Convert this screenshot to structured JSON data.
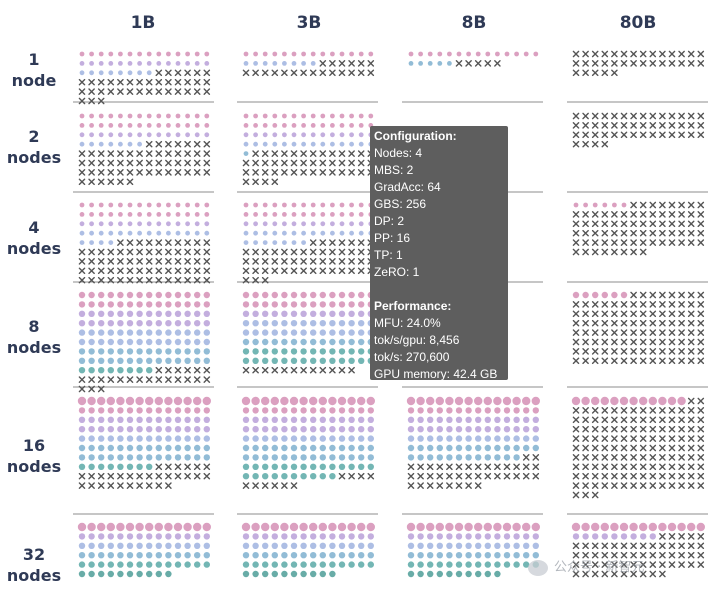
{
  "chart_data": {
    "type": "heatmap",
    "columns": [
      "1B",
      "3B",
      "8B",
      "80B"
    ],
    "rows": [
      [
        "1",
        "node"
      ],
      [
        "2",
        "nodes"
      ],
      [
        "4",
        "nodes"
      ],
      [
        "8",
        "nodes"
      ],
      [
        "16",
        "nodes"
      ],
      [
        "32",
        "nodes"
      ]
    ],
    "cells": [
      [
        {
          "dots": 36,
          "crosses": 37
        },
        {
          "dots": 22,
          "crosses": 20
        },
        {
          "dots": 19,
          "crosses": 5
        },
        {
          "dots": 0,
          "crosses": 33
        }
      ],
      [
        {
          "dots": 49,
          "crosses": 55
        },
        {
          "dots": 57,
          "crosses": 45
        },
        {
          "dots": 0,
          "crosses": 0
        },
        {
          "dots": 0,
          "crosses": 46
        }
      ],
      [
        {
          "dots": 60,
          "crosses": 66
        },
        {
          "dots": 63,
          "crosses": 52
        },
        {
          "dots": 0,
          "crosses": 0
        },
        {
          "dots": 6,
          "crosses": 72
        }
      ],
      [
        {
          "dots": 120,
          "crosses": 23
        },
        {
          "dots": 112,
          "crosses": 12
        },
        {
          "dots": 0,
          "crosses": 0
        },
        {
          "dots": 6,
          "crosses": 106
        }
      ],
      [
        {
          "dots": 106,
          "crosses": 30
        },
        {
          "dots": 122,
          "crosses": 10
        },
        {
          "dots": 96,
          "crosses": 38
        },
        {
          "dots": 12,
          "crosses": 131
        }
      ],
      [
        {
          "dots": 80,
          "crosses": 0
        },
        {
          "dots": 80,
          "crosses": 0
        },
        {
          "dots": 80,
          "crosses": 0
        },
        {
          "dots": 23,
          "crosses": 57
        }
      ]
    ],
    "dot_colors": [
      "#d58fb5",
      "#b9a0d8",
      "#9fb3df",
      "#7fb0cf",
      "#5ba9a7",
      "#4d9d98"
    ],
    "cross_color": "#555555",
    "grid": false,
    "legend": "none"
  },
  "tooltip": {
    "config_heading": "Configuration:",
    "config_lines": [
      "Nodes: 4",
      "MBS: 2",
      "GradAcc: 64",
      "GBS: 256",
      "DP: 2",
      "PP: 16",
      "TP: 1",
      "ZeRO: 1"
    ],
    "perf_heading": "Performance:",
    "perf_lines": [
      "MFU:  24.0%",
      "tok/s/gpu:  8,456",
      "tok/s: 270,600",
      "GPU memory: 42.4 GB"
    ]
  },
  "watermark": {
    "text": "公众号 · 新智元"
  }
}
